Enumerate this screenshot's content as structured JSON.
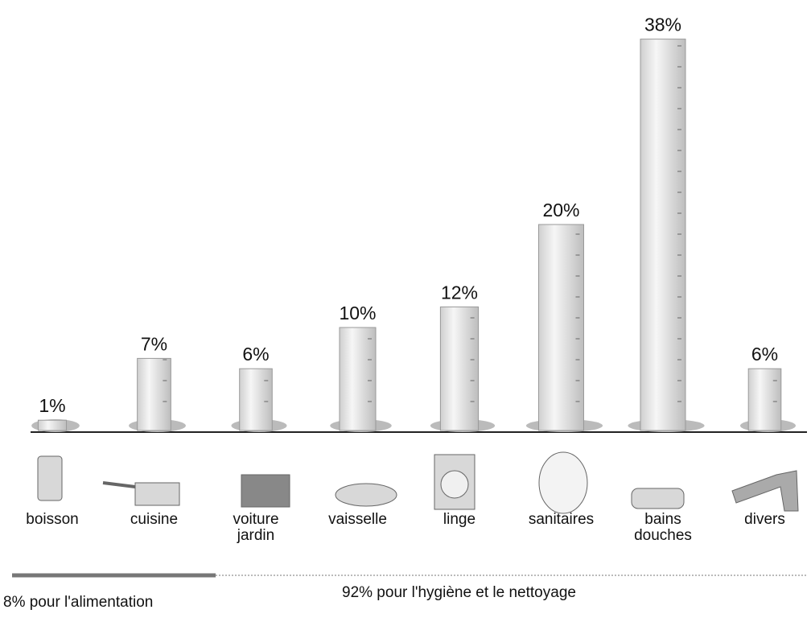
{
  "chart_data": {
    "type": "bar",
    "categories": [
      "boisson",
      "cuisine",
      "voiture\njardin",
      "vaisselle",
      "linge",
      "sanitaires",
      "bains\ndouches",
      "divers"
    ],
    "values": [
      1,
      7,
      6,
      10,
      12,
      20,
      38,
      6
    ],
    "value_labels": [
      "1%",
      "7%",
      "6%",
      "10%",
      "12%",
      "20%",
      "38%",
      "6%"
    ],
    "color": "#e4e4e4",
    "groups": [
      {
        "label": "8% pour l'alimentation"
      },
      {
        "label": "92% pour l'hygiène et le nettoyage"
      }
    ]
  }
}
